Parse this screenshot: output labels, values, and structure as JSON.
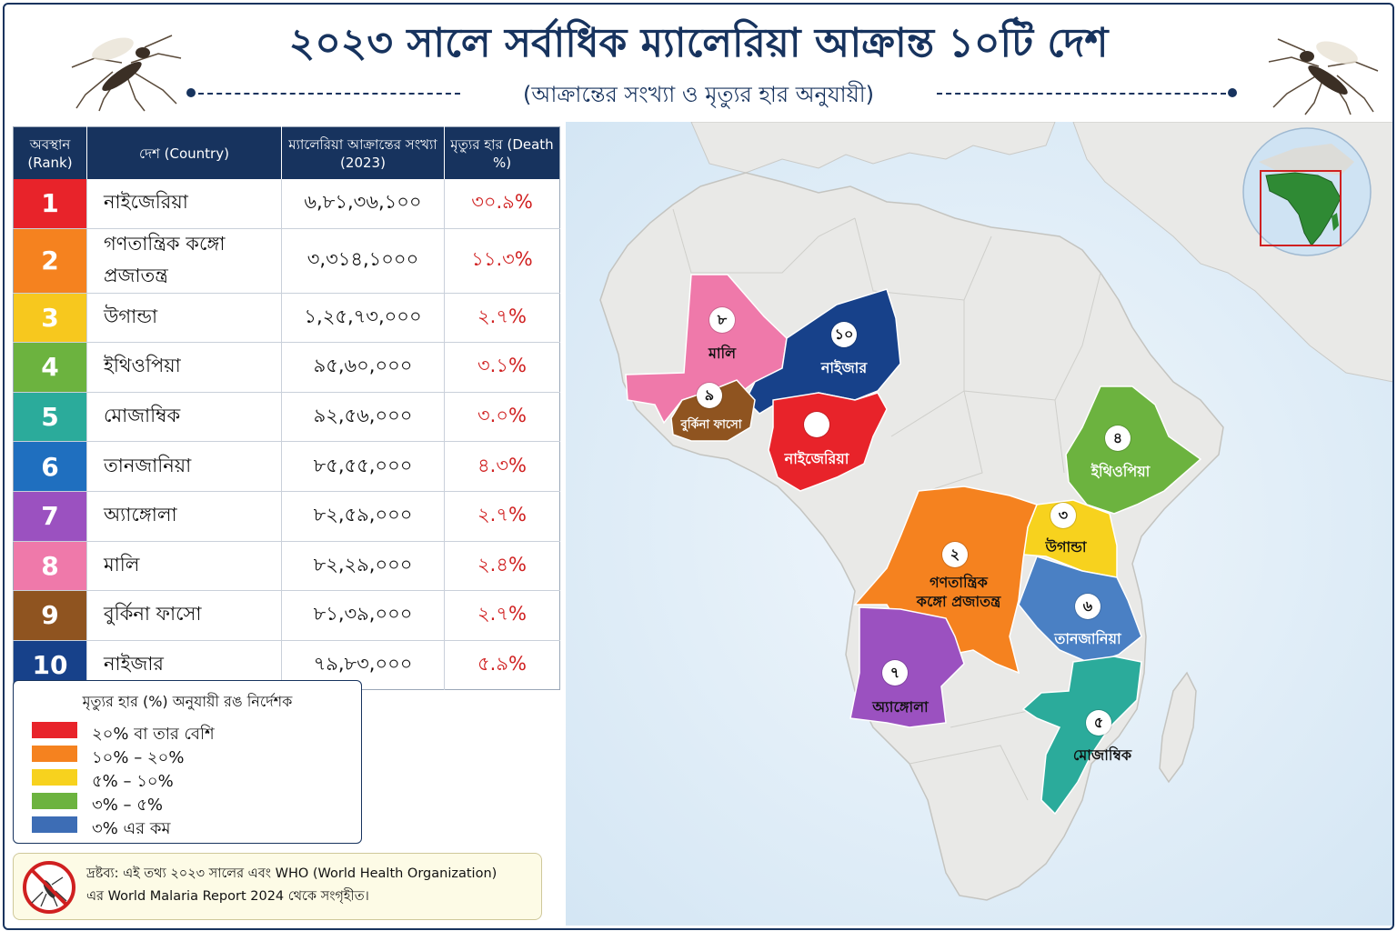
{
  "header": {
    "title": "২০২৩ সালে সর্বাধিক ম্যালেরিয়া আক্রান্ত ১০টি দেশ",
    "subtitle": "(আক্রান্তের সংখ্যা ও মৃত্যুর হার অনুযায়ী)"
  },
  "table": {
    "headers": {
      "rank": "অবস্থান (Rank)",
      "country": "দেশ (Country)",
      "cases": "ম্যালেরিয়া আক্রান্তের সংখ্যা (2023)",
      "death": "মৃত্যুর হার (Death %)"
    },
    "rows": [
      {
        "rank": "1",
        "country": "নাইজেরিয়া",
        "cases": "৬,৮১,৩৬,১০০",
        "death": "৩০.৯%",
        "color": "#e8232a"
      },
      {
        "rank": "2",
        "country": "গণতান্ত্রিক কঙ্গো প্রজাতন্ত্র",
        "cases": "৩,৩১৪,১০০০",
        "death": "১১.৩%",
        "color": "#f5821f"
      },
      {
        "rank": "3",
        "country": "উগান্ডা",
        "cases": "১,২৫,৭৩,০০০",
        "death": "২.৭%",
        "color": "#f7c81e"
      },
      {
        "rank": "4",
        "country": "ইথিওপিয়া",
        "cases": "৯৫,৬০,০০০",
        "death": "৩.১%",
        "color": "#6cb33f"
      },
      {
        "rank": "5",
        "country": "মোজাম্বিক",
        "cases": "৯২,৫৬,০০০",
        "death": "৩.০%",
        "color": "#2bab9b"
      },
      {
        "rank": "6",
        "country": "তানজানিয়া",
        "cases": "৮৫,৫৫,০০০",
        "death": "৪.৩%",
        "color": "#1f6fbf"
      },
      {
        "rank": "7",
        "country": "অ্যাঙ্গোলা",
        "cases": "৮২,৫৯,০০০",
        "death": "২.৭%",
        "color": "#9b51c0"
      },
      {
        "rank": "8",
        "country": "মালি",
        "cases": "৮২,২৯,০০০",
        "death": "২.৪%",
        "color": "#ef79aa"
      },
      {
        "rank": "9",
        "country": "বুর্কিনা ফাসো",
        "cases": "৮১,৩৯,০০০",
        "death": "২.৭%",
        "color": "#8f5420"
      },
      {
        "rank": "10",
        "country": "নাইজার",
        "cases": "৭৯,৮৩,০০০",
        "death": "৫.৯%",
        "color": "#17418a"
      }
    ]
  },
  "legend": {
    "title": "মৃত্যুর হার (%) অনুযায়ী রঙ নির্দেশক",
    "items": [
      {
        "label": "২০% বা তার বেশি",
        "color": "#e8232a"
      },
      {
        "label": "১০% – ২০%",
        "color": "#f5821f"
      },
      {
        "label": "৫% – ১০%",
        "color": "#f7d21e"
      },
      {
        "label": "৩% – ৫%",
        "color": "#6cb33f"
      },
      {
        "label": "৩% এর কম",
        "color": "#3d6db5"
      }
    ]
  },
  "note": {
    "line1": "দ্রষ্টব্য: এই তথ্য ২০২৩ সালের এবং WHO (World Health Organization)",
    "line2": "এর World Malaria Report 2024 থেকে সংগৃহীত।"
  },
  "map": {
    "labels": {
      "mali": {
        "name": "মালি",
        "badge": "৮"
      },
      "niger": {
        "name": "নাইজার",
        "badge": "১০"
      },
      "burkina": {
        "name": "বুর্কিনা ফাসো",
        "badge": "৯"
      },
      "nigeria": {
        "name": "নাইজেরিয়া",
        "badge": ""
      },
      "ethiopia": {
        "name": "ইথিওপিয়া",
        "badge": "৪"
      },
      "uganda": {
        "name": "উগান্ডা",
        "badge": "৩"
      },
      "drc": {
        "name1": "গণতান্ত্রিক",
        "name2": "কঙ্গো প্রজাতন্ত্র",
        "badge": "২"
      },
      "tanzania": {
        "name": "তানজানিয়া",
        "badge": "৬"
      },
      "angola": {
        "name": "অ্যাঙ্গোলা",
        "badge": "৭"
      },
      "mozambique": {
        "name": "মোজাম্বিক",
        "badge": "৫"
      }
    }
  },
  "icons": {
    "mosquito_left": "mosquito-icon",
    "mosquito_right": "mosquito-icon",
    "globe": "globe-inset-icon",
    "no_mosquito": "no-mosquito-icon"
  },
  "colors": {
    "navy": "#17335e",
    "death_text": "#d02020",
    "ocean": "#dcebf7",
    "land": "#e9e9e7"
  }
}
